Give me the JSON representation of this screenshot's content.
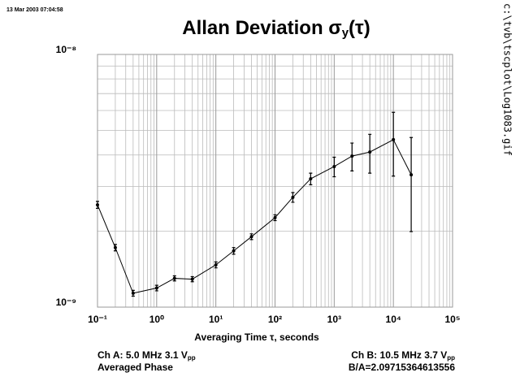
{
  "chart_data": {
    "type": "line",
    "timestamp": "13 Mar 2003 07:04:58",
    "filename": "c:\\tvb\\tscplot\\Log1083.gif",
    "title": {
      "text": "Allan Deviation σ",
      "sub": "y",
      "tail": "(τ)"
    },
    "xlabel": "Averaging Time τ, seconds",
    "notes": {
      "ch_a": {
        "text": "Ch A: 5.0 MHz 3.1 V",
        "sub": "pp"
      },
      "ch_a2": "Averaged Phase",
      "ch_b": {
        "text": "Ch B: 10.5 MHz 3.7 V",
        "sub": "pp"
      },
      "ratio": "B/A=2.09715364613556"
    },
    "xscale": "log",
    "yscale": "log",
    "grid": true,
    "x": [
      0.1,
      0.2,
      0.4,
      1,
      2,
      4,
      10,
      20,
      40,
      100,
      200,
      400,
      1000,
      2000,
      4000,
      10000,
      20000
    ],
    "series": [
      {
        "color": "#000000",
        "values": [
          2.54e-09,
          1.72e-09,
          1.135e-09,
          1.19e-09,
          1.3e-09,
          1.29e-09,
          1.47e-09,
          1.67e-09,
          1.9e-09,
          2.26e-09,
          2.72e-09,
          3.22e-09,
          3.6e-09,
          3.96e-09,
          4.11e-09,
          4.6e-09,
          3.34e-09
        ],
        "errors": [
          8e-11,
          5e-11,
          3e-11,
          3e-11,
          3e-11,
          3e-11,
          4e-11,
          5e-11,
          5e-11,
          6e-11,
          1.2e-10,
          1.7e-10,
          3.2e-10,
          5e-10,
          7.2e-10,
          1.3e-09,
          1.35e-09
        ]
      }
    ],
    "xlim": [
      0.1,
      100000
    ],
    "ylim": [
      1e-09,
      1e-08
    ],
    "xticks": [
      {
        "value": 0.1,
        "label": "10⁻¹"
      },
      {
        "value": 1,
        "label": "10⁰"
      },
      {
        "value": 10,
        "label": "10¹"
      },
      {
        "value": 100,
        "label": "10²"
      },
      {
        "value": 1000,
        "label": "10³"
      },
      {
        "value": 10000,
        "label": "10⁴"
      },
      {
        "value": 100000,
        "label": "10⁵"
      }
    ],
    "yticks": [
      {
        "value": 1e-09,
        "label": "10⁻⁹"
      },
      {
        "value": 1e-08,
        "label": "10⁻⁸"
      }
    ],
    "xminor": [
      0.2,
      0.3,
      0.4,
      0.5,
      0.6,
      0.7,
      0.8,
      0.9,
      2,
      3,
      4,
      5,
      6,
      7,
      8,
      9,
      20,
      30,
      40,
      50,
      60,
      70,
      80,
      90,
      200,
      300,
      400,
      500,
      600,
      700,
      800,
      900,
      2000,
      3000,
      4000,
      5000,
      6000,
      7000,
      8000,
      9000,
      20000,
      30000,
      40000,
      50000,
      60000,
      70000,
      80000,
      90000
    ],
    "yminor": [
      2e-09,
      3e-09,
      4e-09,
      5e-09,
      6e-09,
      7e-09,
      8e-09,
      9e-09
    ]
  }
}
